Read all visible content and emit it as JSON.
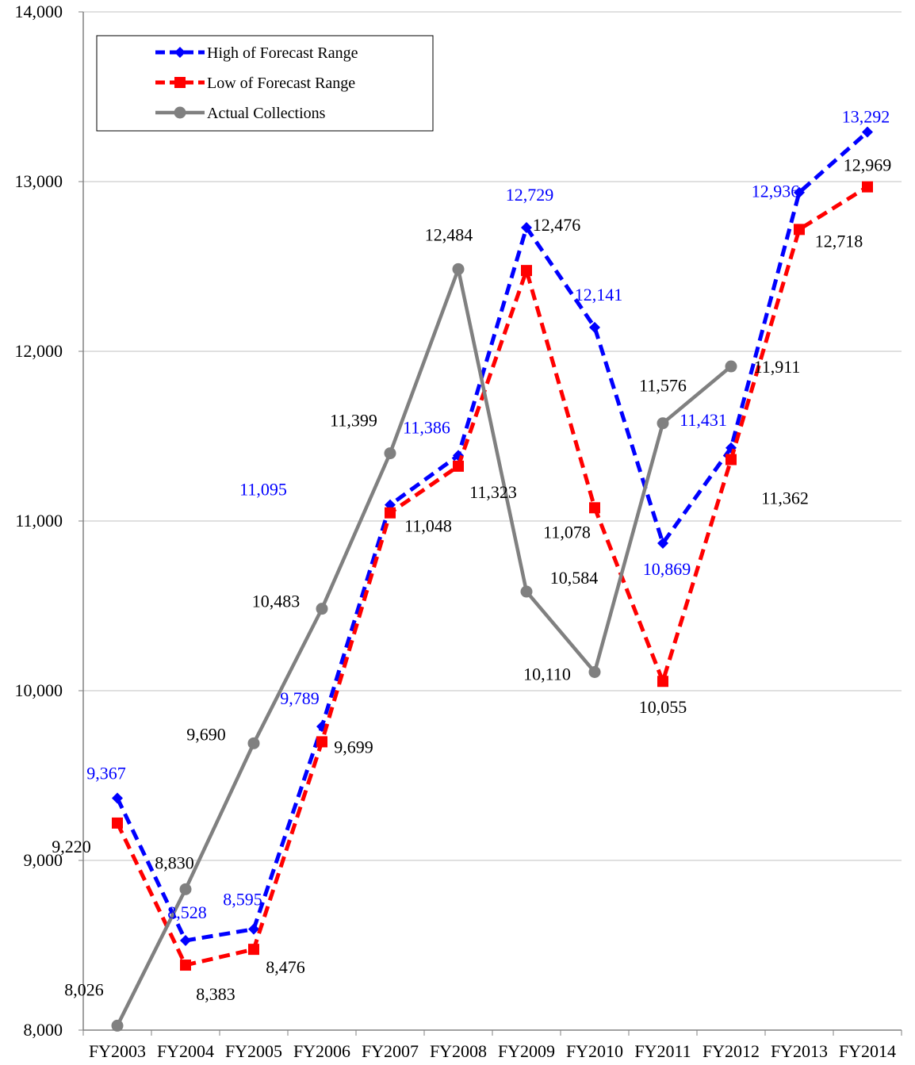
{
  "chart_data": {
    "type": "line",
    "categories": [
      "FY2003",
      "FY2004",
      "FY2005",
      "FY2006",
      "FY2007",
      "FY2008",
      "FY2009",
      "FY2010",
      "FY2011",
      "FY2012",
      "FY2013",
      "FY2014"
    ],
    "ylim": [
      8000,
      14000
    ],
    "yticks": [
      8000,
      9000,
      10000,
      11000,
      12000,
      13000,
      14000
    ],
    "ytick_labels": [
      "8,000",
      "9,000",
      "10,000",
      "11,000",
      "12,000",
      "13,000",
      "14,000"
    ],
    "grid": true,
    "legend_position": "top-left",
    "series": [
      {
        "name": "High of Forecast Range",
        "color": "#0000ff",
        "style": "dashed",
        "marker": "diamond",
        "label_color": "#0000ff",
        "values": [
          9367,
          8528,
          8595,
          9789,
          11095,
          11386,
          12729,
          12141,
          10869,
          11431,
          12936,
          13292
        ],
        "labels": [
          "9,367",
          "8,528",
          "8,595",
          "9,789",
          "11,095",
          "11,386",
          "12,729",
          "12,141",
          "10,869",
          "11,431",
          "12,936",
          "13,292"
        ]
      },
      {
        "name": "Low of Forecast Range",
        "color": "#ff0000",
        "style": "dashed",
        "marker": "square",
        "label_color": "#000000",
        "values": [
          9220,
          8383,
          8476,
          9699,
          11048,
          11323,
          12476,
          11078,
          10055,
          11362,
          12718,
          12969
        ],
        "labels": [
          "9,220",
          "8,383",
          "8,476",
          "9,699",
          "11,048",
          "11,323",
          "12,476",
          "11,078",
          "10,055",
          "11,362",
          "12,718",
          "12,969"
        ]
      },
      {
        "name": "Actual Collections",
        "color": "#808080",
        "style": "solid",
        "marker": "circle",
        "label_color": "#000000",
        "values": [
          8026,
          8830,
          9690,
          10483,
          11399,
          12484,
          10584,
          10110,
          11576,
          11911,
          null,
          null
        ],
        "labels": [
          "8,026",
          "8,830",
          "9,690",
          "10,483",
          "11,399",
          "12,484",
          "10,584",
          "10,110",
          "11,576",
          "11,911",
          "",
          ""
        ]
      }
    ]
  }
}
